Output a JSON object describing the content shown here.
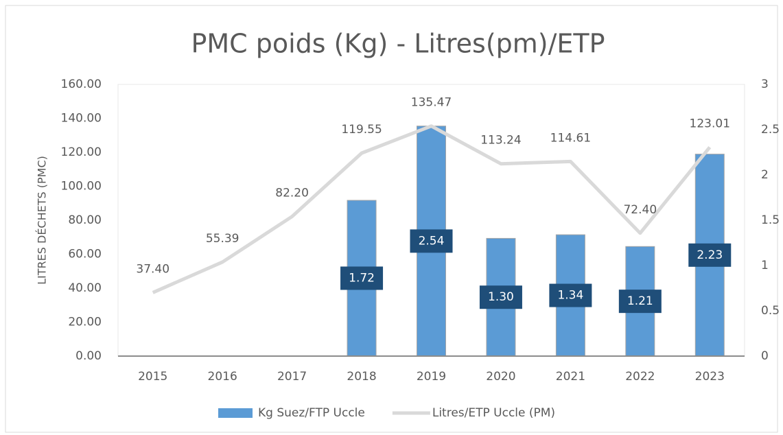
{
  "chart_data": {
    "type": "bar_line",
    "title": "PMC poids (Kg) - Litres(pm)/ETP",
    "y_label": "LITRES DÉCHETS (PMC)",
    "categories": [
      "2015",
      "2016",
      "2017",
      "2018",
      "2019",
      "2020",
      "2021",
      "2022",
      "2023"
    ],
    "series": [
      {
        "name": "Kg Suez/FTP Uccle",
        "type": "bar",
        "axis": "y2",
        "color": "#5b9bd5",
        "label_color": "#1f4e79",
        "values": [
          null,
          null,
          null,
          1.72,
          2.54,
          1.3,
          1.34,
          1.21,
          2.23
        ],
        "value_labels": [
          null,
          null,
          null,
          "1.72",
          "2.54",
          "1.30",
          "1.34",
          "1.21",
          "2.23"
        ]
      },
      {
        "name": "Litres/ETP Uccle (PM)",
        "type": "line",
        "axis": "y",
        "color": "#d9d9d9",
        "values": [
          37.4,
          55.39,
          82.2,
          119.55,
          135.47,
          113.24,
          114.61,
          72.4,
          123.01
        ],
        "value_labels": [
          "37.40",
          "55.39",
          "82.20",
          "119.55",
          "135.47",
          "113.24",
          "114.61",
          "72.40",
          "123.01"
        ]
      }
    ],
    "ylim": [
      0,
      160
    ],
    "yticks": [
      {
        "value": 0,
        "label": "0.00"
      },
      {
        "value": 20,
        "label": "20.00"
      },
      {
        "value": 40,
        "label": "40.00"
      },
      {
        "value": 60,
        "label": "60.00"
      },
      {
        "value": 80,
        "label": "80.00"
      },
      {
        "value": 100,
        "label": "100.00"
      },
      {
        "value": 120,
        "label": "120.00"
      },
      {
        "value": 140,
        "label": "140.00"
      },
      {
        "value": 160,
        "label": "160.00"
      }
    ],
    "y2lim": [
      0,
      3
    ],
    "y2ticks": [
      0,
      0.5,
      1,
      1.5,
      2,
      2.5,
      3
    ],
    "grid": false,
    "legend": "bottom"
  }
}
